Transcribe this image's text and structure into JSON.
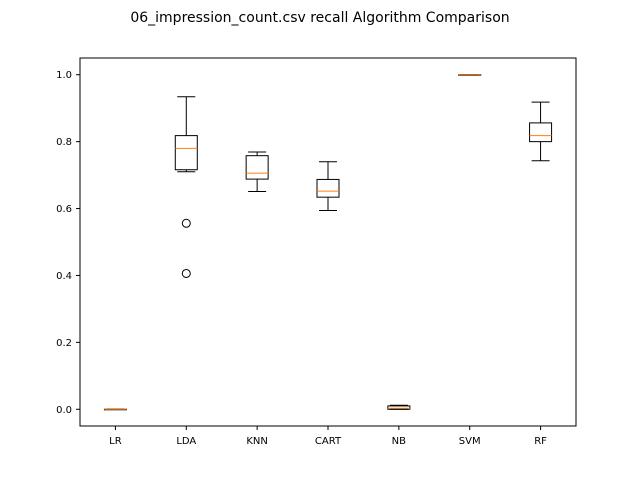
{
  "chart_data": {
    "type": "boxplot",
    "title": "06_impression_count.csv recall Algorithm Comparison",
    "xlabel": "",
    "ylabel": "",
    "ylim": [
      -0.05,
      1.05
    ],
    "yticks": [
      0.0,
      0.2,
      0.4,
      0.6,
      0.8,
      1.0
    ],
    "ytick_labels": [
      "0.0",
      "0.2",
      "0.4",
      "0.6",
      "0.8",
      "1.0"
    ],
    "categories": [
      "LR",
      "LDA",
      "KNN",
      "CART",
      "NB",
      "SVM",
      "RF"
    ],
    "boxes": [
      {
        "label": "LR",
        "whisker_low": 0.0,
        "q1": 0.0,
        "median": 0.0,
        "q3": 0.0,
        "whisker_high": 0.0,
        "outliers": []
      },
      {
        "label": "LDA",
        "whisker_low": 0.71,
        "q1": 0.716,
        "median": 0.78,
        "q3": 0.818,
        "whisker_high": 0.934,
        "outliers": [
          0.556,
          0.406
        ]
      },
      {
        "label": "KNN",
        "whisker_low": 0.651,
        "q1": 0.688,
        "median": 0.706,
        "q3": 0.758,
        "whisker_high": 0.769,
        "outliers": []
      },
      {
        "label": "CART",
        "whisker_low": 0.594,
        "q1": 0.634,
        "median": 0.652,
        "q3": 0.687,
        "whisker_high": 0.74,
        "outliers": []
      },
      {
        "label": "NB",
        "whisker_low": 0.0,
        "q1": 0.0,
        "median": 0.003,
        "q3": 0.01,
        "whisker_high": 0.012,
        "outliers": []
      },
      {
        "label": "SVM",
        "whisker_low": 1.0,
        "q1": 1.0,
        "median": 1.0,
        "q3": 1.0,
        "whisker_high": 1.0,
        "outliers": []
      },
      {
        "label": "RF",
        "whisker_low": 0.743,
        "q1": 0.8,
        "median": 0.818,
        "q3": 0.856,
        "whisker_high": 0.918,
        "outliers": []
      }
    ],
    "colors": {
      "box": "#000000",
      "median": "#ff7f0e",
      "axes": "#000000",
      "background": "#ffffff"
    }
  }
}
